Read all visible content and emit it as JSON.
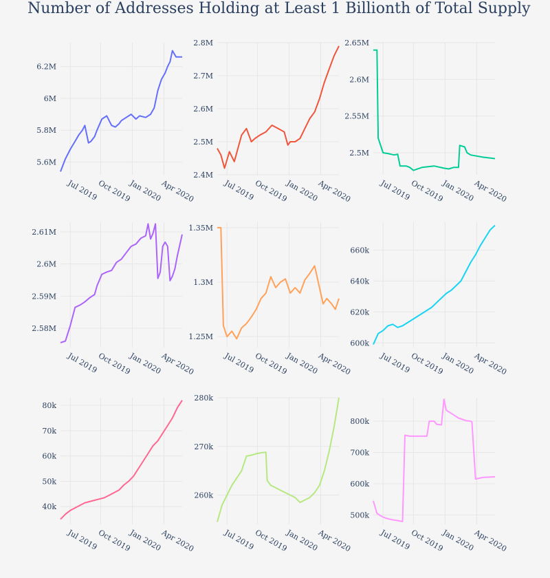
{
  "title": "Number of Addresses Holding at Least 1 Billionth of Total Supply",
  "colors": [
    "#636efa",
    "#EF553B",
    "#00cc96",
    "#ab63fa",
    "#FFA15A",
    "#19d3f3",
    "#FF6692",
    "#B6E880",
    "#FF97FF"
  ],
  "chart_data": [
    {
      "type": "line",
      "x_ticks": [
        "Jul 2019",
        "Oct 2019",
        "Jan 2020",
        "Apr 2020"
      ],
      "y_ticks": [
        "5.6M",
        "5.8M",
        "6M",
        "6.2M"
      ],
      "y_tick_values": [
        5.6,
        5.8,
        6.0,
        6.2
      ],
      "ylim": [
        5.52,
        6.35
      ],
      "x": [
        0,
        0.04,
        0.08,
        0.12,
        0.15,
        0.18,
        0.2,
        0.23,
        0.25,
        0.28,
        0.3,
        0.34,
        0.38,
        0.42,
        0.45,
        0.48,
        0.5,
        0.54,
        0.58,
        0.62,
        0.65,
        0.7,
        0.74,
        0.77,
        0.8,
        0.83,
        0.86,
        0.88,
        0.9,
        0.92,
        0.95,
        1.0
      ],
      "values": [
        5.54,
        5.62,
        5.68,
        5.73,
        5.77,
        5.8,
        5.83,
        5.72,
        5.73,
        5.76,
        5.8,
        5.87,
        5.89,
        5.83,
        5.82,
        5.84,
        5.86,
        5.88,
        5.9,
        5.87,
        5.89,
        5.88,
        5.9,
        5.94,
        6.05,
        6.12,
        6.16,
        6.2,
        6.23,
        6.3,
        6.26,
        6.26
      ]
    },
    {
      "type": "line",
      "x_ticks": [
        "Jul 2019",
        "Oct 2019",
        "Jan 2020",
        "Apr 2020"
      ],
      "y_ticks": [
        "2.4M",
        "2.5M",
        "2.6M",
        "2.7M",
        "2.8M"
      ],
      "y_tick_values": [
        2.4,
        2.5,
        2.6,
        2.7,
        2.8
      ],
      "ylim": [
        2.4,
        2.8
      ],
      "x": [
        0,
        0.03,
        0.06,
        0.1,
        0.14,
        0.17,
        0.2,
        0.24,
        0.28,
        0.31,
        0.35,
        0.4,
        0.45,
        0.5,
        0.55,
        0.58,
        0.6,
        0.64,
        0.68,
        0.72,
        0.76,
        0.8,
        0.84,
        0.88,
        0.92,
        0.96,
        1.0
      ],
      "values": [
        2.48,
        2.46,
        2.42,
        2.47,
        2.44,
        2.48,
        2.52,
        2.54,
        2.5,
        2.51,
        2.52,
        2.53,
        2.55,
        2.54,
        2.53,
        2.49,
        2.5,
        2.5,
        2.51,
        2.54,
        2.57,
        2.59,
        2.63,
        2.68,
        2.72,
        2.76,
        2.79
      ]
    },
    {
      "type": "line",
      "x_ticks": [
        "Jul 2019",
        "Oct 2019",
        "Jan 2020",
        "Apr 2020"
      ],
      "y_ticks": [
        "2.5M",
        "2.55M",
        "2.6M",
        "2.65M"
      ],
      "y_tick_values": [
        2.5,
        2.55,
        2.6,
        2.65
      ],
      "ylim": [
        2.47,
        2.65
      ],
      "x": [
        0,
        0.03,
        0.04,
        0.08,
        0.12,
        0.17,
        0.2,
        0.22,
        0.27,
        0.3,
        0.33,
        0.4,
        0.5,
        0.58,
        0.62,
        0.66,
        0.7,
        0.71,
        0.75,
        0.77,
        0.8,
        0.9,
        1.0
      ],
      "values": [
        2.64,
        2.64,
        2.52,
        2.5,
        2.499,
        2.497,
        2.498,
        2.482,
        2.482,
        2.48,
        2.476,
        2.48,
        2.482,
        2.479,
        2.478,
        2.48,
        2.48,
        2.51,
        2.508,
        2.5,
        2.497,
        2.494,
        2.492
      ]
    },
    {
      "type": "line",
      "x_ticks": [
        "Jul 2019",
        "Oct 2019",
        "Jan 2020",
        "Apr 2020"
      ],
      "y_ticks": [
        "2.58M",
        "2.59M",
        "2.6M",
        "2.61M"
      ],
      "y_tick_values": [
        2.58,
        2.59,
        2.6,
        2.61
      ],
      "ylim": [
        2.574,
        2.613
      ],
      "x": [
        0,
        0.04,
        0.08,
        0.12,
        0.16,
        0.2,
        0.24,
        0.28,
        0.3,
        0.34,
        0.38,
        0.42,
        0.46,
        0.5,
        0.54,
        0.58,
        0.62,
        0.66,
        0.7,
        0.72,
        0.74,
        0.76,
        0.78,
        0.8,
        0.82,
        0.84,
        0.86,
        0.88,
        0.9,
        0.92,
        0.94,
        0.96,
        1.0
      ],
      "values": [
        2.5755,
        2.576,
        2.5808,
        2.5865,
        2.5872,
        2.5882,
        2.5895,
        2.5905,
        2.5932,
        2.5968,
        2.5975,
        2.598,
        2.6005,
        2.6015,
        2.6035,
        2.6055,
        2.6062,
        2.608,
        2.6088,
        2.6125,
        2.6078,
        2.6095,
        2.6125,
        2.5955,
        2.5975,
        2.6055,
        2.6068,
        2.6055,
        2.5948,
        2.5962,
        2.5985,
        2.6025,
        2.6092
      ]
    },
    {
      "type": "line",
      "x_ticks": [
        "Jul 2019",
        "Oct 2019",
        "Jan 2020",
        "Apr 2020"
      ],
      "y_ticks": [
        "1.25M",
        "1.3M",
        "1.35M"
      ],
      "y_tick_values": [
        1.25,
        1.3,
        1.35
      ],
      "ylim": [
        1.24,
        1.355
      ],
      "x": [
        0,
        0.03,
        0.05,
        0.08,
        0.12,
        0.16,
        0.2,
        0.24,
        0.28,
        0.32,
        0.36,
        0.4,
        0.44,
        0.48,
        0.52,
        0.56,
        0.6,
        0.64,
        0.68,
        0.72,
        0.76,
        0.8,
        0.84,
        0.87,
        0.9,
        0.94,
        0.97,
        1.0
      ],
      "values": [
        1.35,
        1.35,
        1.26,
        1.25,
        1.255,
        1.248,
        1.258,
        1.262,
        1.268,
        1.275,
        1.285,
        1.29,
        1.305,
        1.295,
        1.3,
        1.303,
        1.29,
        1.295,
        1.29,
        1.302,
        1.308,
        1.315,
        1.295,
        1.28,
        1.285,
        1.28,
        1.275,
        1.285
      ]
    },
    {
      "type": "line",
      "x_ticks": [
        "Jul 2019",
        "Oct 2019",
        "Jan 2020",
        "Apr 2020"
      ],
      "y_ticks": [
        "600k",
        "620k",
        "640k",
        "660k"
      ],
      "y_tick_values": [
        600,
        620,
        640,
        660
      ],
      "ylim": [
        597,
        678
      ],
      "x": [
        0,
        0.04,
        0.08,
        0.12,
        0.16,
        0.2,
        0.24,
        0.28,
        0.32,
        0.36,
        0.4,
        0.44,
        0.48,
        0.52,
        0.56,
        0.6,
        0.64,
        0.68,
        0.72,
        0.76,
        0.8,
        0.84,
        0.88,
        0.92,
        0.96,
        1.0
      ],
      "values": [
        599,
        606,
        608,
        611,
        612,
        610,
        611,
        613,
        615,
        617,
        619,
        621,
        623,
        626,
        629,
        632,
        634,
        637,
        640,
        646,
        652,
        657,
        663,
        668,
        673,
        676
      ]
    },
    {
      "type": "line",
      "x_ticks": [
        "Jul 2019",
        "Oct 2019",
        "Jan 2020",
        "Apr 2020"
      ],
      "y_ticks": [
        "40k",
        "50k",
        "60k",
        "70k",
        "80k"
      ],
      "y_tick_values": [
        40,
        50,
        60,
        70,
        80
      ],
      "ylim": [
        33,
        83
      ],
      "x": [
        0,
        0.04,
        0.08,
        0.12,
        0.16,
        0.2,
        0.24,
        0.28,
        0.32,
        0.36,
        0.4,
        0.44,
        0.48,
        0.52,
        0.56,
        0.6,
        0.64,
        0.68,
        0.72,
        0.76,
        0.8,
        0.84,
        0.88,
        0.92,
        0.96,
        1.0
      ],
      "values": [
        35,
        37,
        38.5,
        39.5,
        40.5,
        41.5,
        42,
        42.5,
        43,
        43.5,
        44.5,
        45.5,
        46.5,
        48.5,
        50,
        52,
        55,
        58,
        61,
        64,
        66,
        69,
        72,
        75,
        79,
        82
      ]
    },
    {
      "type": "line",
      "x_ticks": [
        "Jul 2019",
        "Oct 2019",
        "Jan 2020",
        "Apr 2020"
      ],
      "y_ticks": [
        "260k",
        "270k",
        "280k"
      ],
      "y_tick_values": [
        260,
        270,
        280
      ],
      "ylim": [
        254,
        280
      ],
      "x": [
        0,
        0.04,
        0.08,
        0.12,
        0.16,
        0.2,
        0.24,
        0.28,
        0.32,
        0.36,
        0.4,
        0.41,
        0.44,
        0.48,
        0.52,
        0.56,
        0.6,
        0.64,
        0.68,
        0.72,
        0.76,
        0.8,
        0.84,
        0.88,
        0.92,
        0.96,
        1.0
      ],
      "values": [
        254.5,
        258,
        260,
        262,
        263.5,
        265,
        268,
        268.2,
        268.5,
        268.7,
        268.8,
        263,
        262,
        261.5,
        261,
        260.5,
        260,
        259.5,
        258.5,
        259,
        259.5,
        260.5,
        262,
        265,
        269,
        274,
        280
      ]
    },
    {
      "type": "line",
      "x_ticks": [
        "Jul 2019",
        "Oct 2019",
        "Jan 2020",
        "Apr 2020"
      ],
      "y_ticks": [
        "500k",
        "600k",
        "700k",
        "800k"
      ],
      "y_tick_values": [
        500,
        600,
        700,
        800
      ],
      "ylim": [
        470,
        875
      ],
      "x": [
        0,
        0.03,
        0.06,
        0.1,
        0.15,
        0.2,
        0.24,
        0.26,
        0.3,
        0.35,
        0.4,
        0.44,
        0.46,
        0.5,
        0.52,
        0.56,
        0.58,
        0.6,
        0.64,
        0.7,
        0.76,
        0.8,
        0.81,
        0.84,
        0.9,
        1.0
      ],
      "values": [
        545,
        505,
        497,
        490,
        485,
        482,
        479,
        755,
        752,
        752,
        752,
        752,
        800,
        800,
        790,
        788,
        870,
        835,
        825,
        810,
        802,
        800,
        798,
        615,
        620,
        622
      ]
    }
  ]
}
